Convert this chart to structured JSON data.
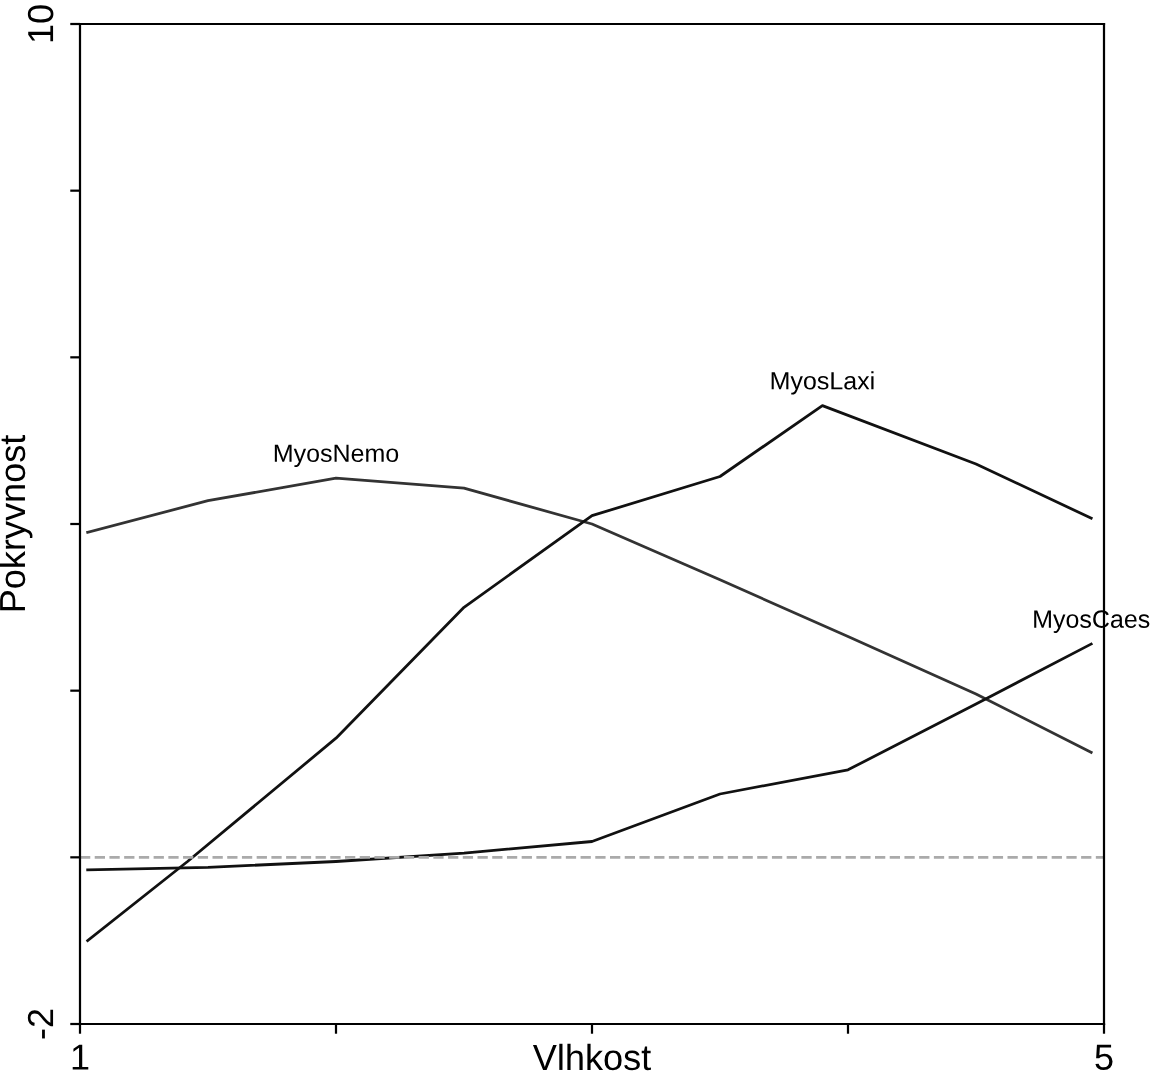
{
  "chart_data": {
    "type": "line",
    "xlabel": "Vlhkost",
    "ylabel": "Pokryvnost",
    "xlim": [
      1,
      5
    ],
    "ylim": [
      -2,
      10
    ],
    "xticks": [
      1,
      {
        "value": 2,
        "label": null
      },
      {
        "value": 3,
        "label": null
      },
      {
        "value": 4,
        "label": null
      },
      5
    ],
    "yticks": [
      -2,
      {
        "value": 0,
        "label": null
      },
      {
        "value": 2,
        "label": null
      },
      {
        "value": 4,
        "label": null
      },
      {
        "value": 6,
        "label": null
      },
      {
        "value": 8,
        "label": null
      },
      10
    ],
    "grid": false,
    "legend": false,
    "marker": "none",
    "ref_lines": [
      {
        "axis": "y",
        "value": 0,
        "color": "#aaaaaa",
        "line_style": "dashed"
      }
    ],
    "series": [
      {
        "name": "MyosNemo",
        "color": "#333333",
        "x": [
          1.03,
          1.5,
          2,
          2.5,
          3,
          3.5,
          4,
          4.5,
          4.95
        ],
        "values": [
          3.9,
          4.28,
          4.55,
          4.43,
          4.0,
          3.33,
          2.65,
          1.96,
          1.26
        ]
      },
      {
        "name": "MyosLaxi",
        "color": "#111111",
        "x": [
          1.03,
          1.42,
          2,
          2.5,
          3,
          3.5,
          3.9,
          4.5,
          4.95
        ],
        "values": [
          -1.0,
          -0.05,
          1.43,
          3.0,
          4.1,
          4.57,
          5.42,
          4.72,
          4.07
        ]
      },
      {
        "name": "MyosCaes",
        "color": "#111111",
        "x": [
          1.03,
          1.5,
          2,
          2.5,
          3,
          3.5,
          4,
          4.5,
          4.95
        ],
        "values": [
          -0.15,
          -0.12,
          -0.05,
          0.05,
          0.19,
          0.76,
          1.05,
          1.84,
          2.56
        ]
      }
    ]
  }
}
